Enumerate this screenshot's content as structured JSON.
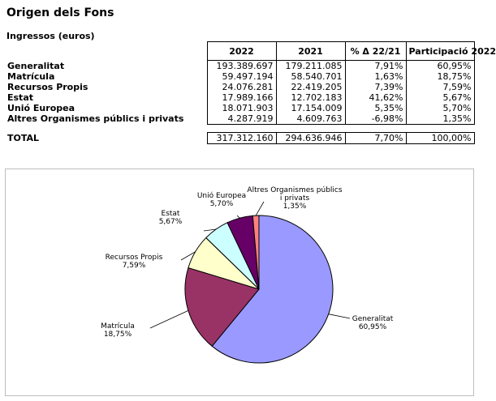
{
  "title": "Origen dels Fons",
  "table_subtitle": "Ingressos (euros)",
  "table": {
    "headers": [
      "2022",
      "2021",
      "% Δ 22/21",
      "Participació 2022"
    ],
    "rows": [
      {
        "label": "Generalitat",
        "cells": [
          "193.389.697",
          "179.211.085",
          "7,91%",
          "60,95%"
        ]
      },
      {
        "label": "Matrícula",
        "cells": [
          "59.497.194",
          "58.540.701",
          "1,63%",
          "18,75%"
        ]
      },
      {
        "label": "Recursos Propis",
        "cells": [
          "24.076.281",
          "22.419.205",
          "7,39%",
          "7,59%"
        ]
      },
      {
        "label": "Estat",
        "cells": [
          "17.989.166",
          "12.702.183",
          "41,62%",
          "5,67%"
        ]
      },
      {
        "label": "Unió Europea",
        "cells": [
          "18.071.903",
          "17.154.009",
          "5,35%",
          "5,70%"
        ]
      },
      {
        "label": "Altres Organismes públics i privats",
        "cells": [
          "4.287.919",
          "4.609.763",
          "-6,98%",
          "1,35%"
        ]
      }
    ],
    "total": {
      "label": "TOTAL",
      "cells": [
        "317.312.160",
        "294.636.946",
        "7,70%",
        "100,00%"
      ]
    }
  },
  "chart_data": {
    "type": "pie",
    "slices": [
      {
        "name": "Generalitat",
        "value": 60.95,
        "label": "60,95%",
        "color": "#9999ff"
      },
      {
        "name": "Matrícula",
        "value": 18.75,
        "label": "18,75%",
        "color": "#993366"
      },
      {
        "name": "Recursos Propis",
        "value": 7.59,
        "label": "7,59%",
        "color": "#ffffcc"
      },
      {
        "name": "Estat",
        "value": 5.67,
        "label": "5,67%",
        "color": "#ccffff"
      },
      {
        "name": "Unió Europea",
        "value": 5.7,
        "label": "5,70%",
        "color": "#660066"
      },
      {
        "name": "Altres Organismes públics i privats",
        "value": 1.35,
        "label": "1,35%",
        "color": "#ff8080"
      }
    ],
    "legend": "none"
  }
}
